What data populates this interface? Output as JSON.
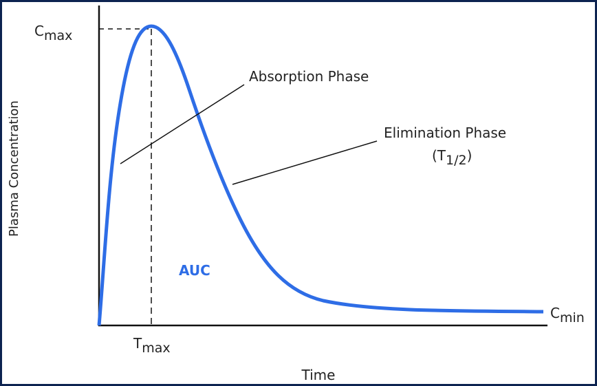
{
  "diagram": {
    "y_axis_label": "Plasma Concentration",
    "x_axis_label": "Time",
    "cmax": {
      "base": "C",
      "sub": "max"
    },
    "cmin": {
      "base": "C",
      "sub": "min"
    },
    "tmax": {
      "base": "T",
      "sub": "max"
    },
    "absorption": "Absorption Phase",
    "elimination": "Elimination Phase",
    "half_life": {
      "open": "(T",
      "sub": "1/2",
      "close": ")"
    },
    "area": "AUC"
  }
}
